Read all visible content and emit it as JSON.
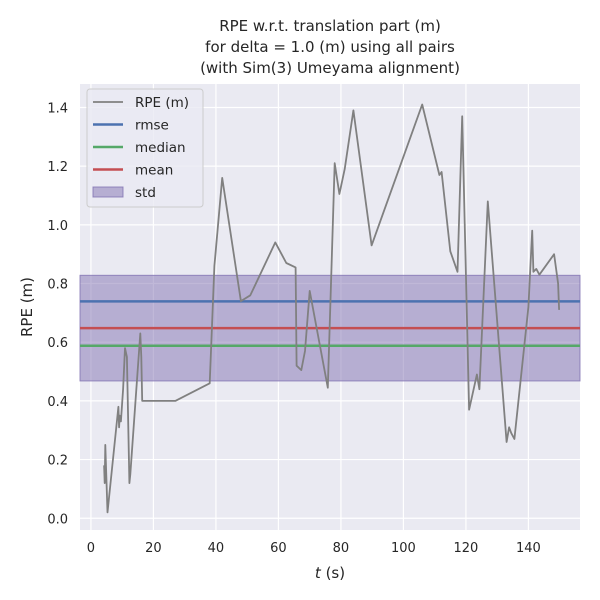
{
  "chart_data": {
    "type": "line",
    "title": [
      "RPE w.r.t. translation part (m)",
      "for delta = 1.0 (m) using all pairs",
      "(with Sim(3) Umeyama alignment)"
    ],
    "xlabel_italic": "t",
    "xlabel_unit": " (s)",
    "ylabel": "RPE (m)",
    "xlim": [
      -3.5,
      156.5
    ],
    "ylim": [
      -0.04,
      1.48
    ],
    "xticks": [
      0,
      20,
      40,
      60,
      80,
      100,
      120,
      140
    ],
    "yticks": [
      0.0,
      0.2,
      0.4,
      0.6,
      0.8,
      1.0,
      1.2,
      1.4
    ],
    "ytick_labels": [
      "0.0",
      "0.2",
      "0.4",
      "0.6",
      "0.8",
      "1.0",
      "1.2",
      "1.4"
    ],
    "grid": true,
    "legend_position": "top-left",
    "series": [
      {
        "name": "RPE (m)",
        "color": "#808080",
        "x": [
          4.2,
          4.4,
          4.6,
          5.3,
          8.8,
          9.0,
          9.2,
          9.6,
          10.3,
          10.9,
          11.5,
          12.3,
          12.6,
          15.8,
          16.1,
          16.4,
          27.0,
          38.0,
          39.5,
          42.0,
          48.0,
          51.0,
          59.0,
          62.5,
          65.5,
          65.8,
          67.3,
          68.5,
          70.0,
          75.8,
          78.0,
          79.5,
          81.2,
          84.0,
          89.8,
          106.0,
          111.5,
          112.2,
          115.0,
          117.3,
          118.8,
          121.0,
          123.5,
          124.3,
          127.0,
          133.0,
          133.8,
          134.5,
          135.5,
          140.0,
          141.2,
          141.6,
          142.5,
          143.5,
          148.2,
          149.5,
          149.8
        ],
        "y": [
          0.18,
          0.12,
          0.25,
          0.02,
          0.38,
          0.31,
          0.35,
          0.33,
          0.44,
          0.58,
          0.55,
          0.12,
          0.15,
          0.63,
          0.55,
          0.4,
          0.4,
          0.46,
          0.86,
          1.16,
          0.74,
          0.76,
          0.94,
          0.87,
          0.855,
          0.52,
          0.505,
          0.57,
          0.775,
          0.445,
          1.21,
          1.105,
          1.19,
          1.39,
          0.93,
          1.41,
          1.17,
          1.18,
          0.91,
          0.84,
          1.37,
          0.37,
          0.49,
          0.44,
          1.08,
          0.26,
          0.31,
          0.29,
          0.27,
          0.72,
          0.98,
          0.84,
          0.85,
          0.83,
          0.9,
          0.8,
          0.71
        ]
      },
      {
        "name": "rmse",
        "color": "#4C72B0",
        "value": 0.739
      },
      {
        "name": "median",
        "color": "#55A868",
        "value": 0.588
      },
      {
        "name": "mean",
        "color": "#C44E52",
        "value": 0.648
      },
      {
        "name": "std",
        "color": "#8172B2",
        "range": [
          0.468,
          0.828
        ]
      }
    ]
  }
}
